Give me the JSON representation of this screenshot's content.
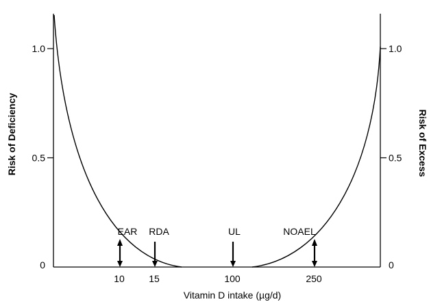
{
  "chart_data": {
    "type": "line",
    "title": "",
    "xlabel": "Vitamin D intake (µg/d)",
    "ylabel_left": "Risk of Deficiency",
    "ylabel_right": "Risk of Excess",
    "yticks_left": [
      "0",
      "0.5",
      "1.0"
    ],
    "yticks_right": [
      "0",
      "0.5",
      "1.0"
    ],
    "ytick_values": [
      0,
      0.5,
      1.0
    ],
    "ylim": [
      0,
      1.15
    ],
    "x_tick_labels": [
      "10",
      "15",
      "100",
      "250"
    ],
    "markers": [
      {
        "label": "EAR",
        "x_label": "10",
        "double_arrow": true
      },
      {
        "label": "RDA",
        "x_label": "15",
        "double_arrow": false
      },
      {
        "label": "UL",
        "x_label": "100",
        "double_arrow": false
      },
      {
        "label": "NOAEL",
        "x_label": "250",
        "double_arrow": true
      }
    ],
    "grid": false,
    "legend": "none"
  }
}
